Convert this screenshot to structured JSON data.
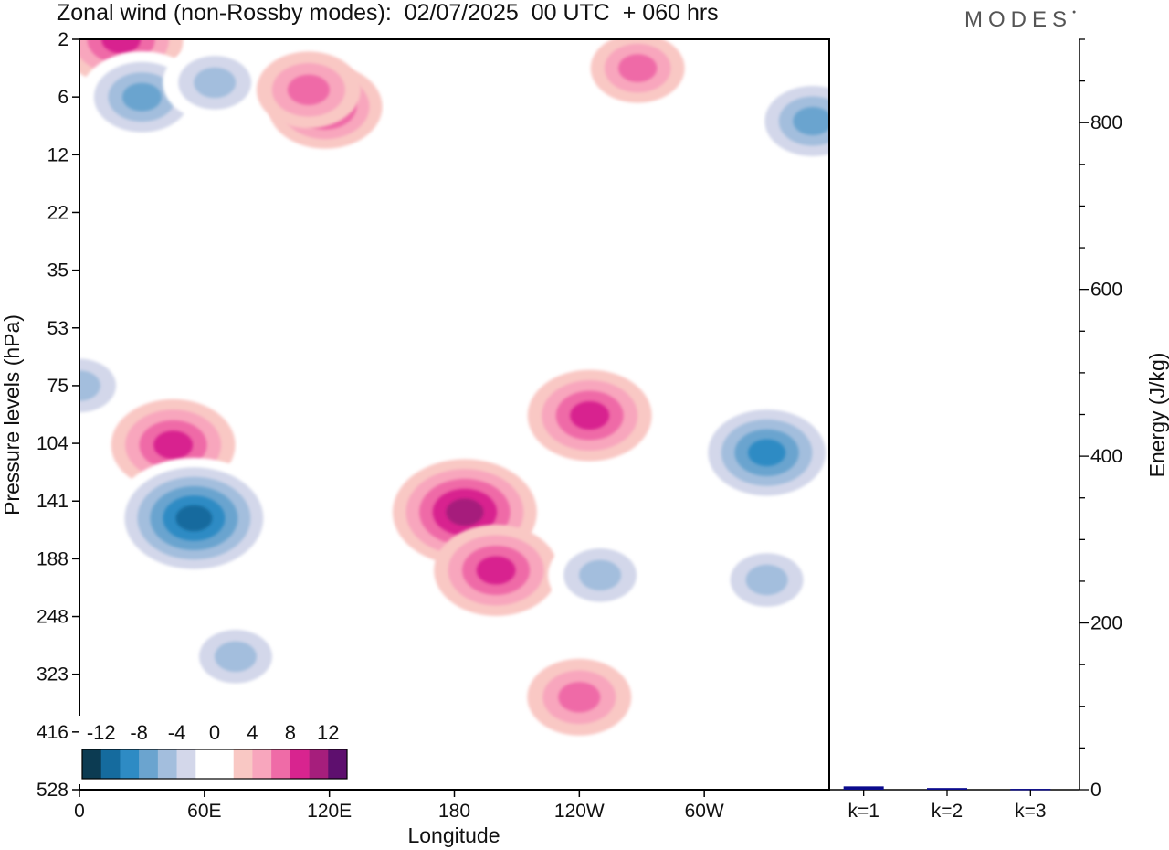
{
  "title": "Zonal wind (non-Rossby modes):  02/07/2025  00 UTC  + 060 hrs",
  "brand": "MODES",
  "chart_data": [
    {
      "type": "heatmap",
      "field": "Zonal wind (non-Rossby modes)",
      "xlabel": "Longitude",
      "ylabel": "Pressure levels (hPa)",
      "x_ticks": [
        "0",
        "60E",
        "120E",
        "180",
        "120W",
        "60W"
      ],
      "y_ticks": [
        "2",
        "6",
        "12",
        "22",
        "35",
        "53",
        "75",
        "104",
        "141",
        "188",
        "248",
        "323",
        "416",
        "528"
      ],
      "colorbar": {
        "ticks": [
          "-12",
          "-8",
          "-4",
          "0",
          "4",
          "8",
          "12"
        ],
        "colors": [
          "#0c3b52",
          "#156b9e",
          "#2e8bc4",
          "#6ba4cf",
          "#a3bedd",
          "#d3d7ea",
          "#ffffff",
          "#ffffff",
          "#f9c8c4",
          "#f8a6bd",
          "#ef6ba7",
          "#d8248f",
          "#a61e7c",
          "#5e0f6e"
        ]
      },
      "features": [
        {
          "lon": 20,
          "level": 2,
          "value": 8
        },
        {
          "lon": 30,
          "level": 6,
          "value": -8
        },
        {
          "lon": 65,
          "level": 5,
          "value": -6
        },
        {
          "lon": 118,
          "level": 7,
          "value": 7
        },
        {
          "lon": 110,
          "level": 5.5,
          "value": 6
        },
        {
          "lon": 268,
          "level": 4,
          "value": 5
        },
        {
          "lon": 352,
          "level": 8.5,
          "value": -8
        },
        {
          "lon": 0,
          "level": 75,
          "value": -6
        },
        {
          "lon": 45,
          "level": 105,
          "value": 8
        },
        {
          "lon": 55,
          "level": 155,
          "value": -12
        },
        {
          "lon": 75,
          "level": 300,
          "value": -6
        },
        {
          "lon": 185,
          "level": 150,
          "value": 10
        },
        {
          "lon": 200,
          "level": 200,
          "value": 8
        },
        {
          "lon": 245,
          "level": 90,
          "value": 8
        },
        {
          "lon": 250,
          "level": 205,
          "value": -6
        },
        {
          "lon": 240,
          "level": 360,
          "value": 6
        },
        {
          "lon": 330,
          "level": 110,
          "value": -10
        },
        {
          "lon": 330,
          "level": 210,
          "value": -6
        }
      ]
    },
    {
      "type": "bar",
      "categories": [
        "k=1",
        "k=2",
        "k=3"
      ],
      "values": [
        4,
        2,
        1
      ],
      "ylabel": "Energy (J/kg)",
      "ylim": [
        0,
        900
      ],
      "y_ticks": [
        "0",
        "200",
        "400",
        "600",
        "800"
      ],
      "bar_color": "#0a0a8c"
    }
  ]
}
